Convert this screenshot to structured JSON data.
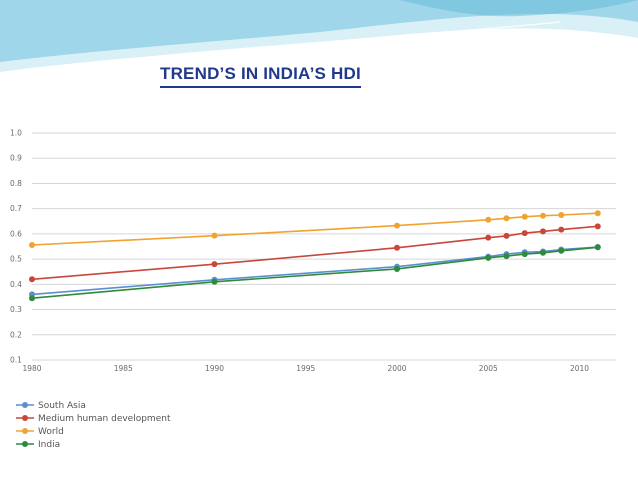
{
  "slide": {
    "title": "TREND’S  IN  INDIA’S  HDI"
  },
  "colors": {
    "title": "#1f3a8a",
    "header_wave_light": "#bfe6f2",
    "header_wave_dark": "#5fb9d6",
    "grid": "#d6d6d6"
  },
  "chart_data": {
    "type": "line",
    "title": "",
    "xlabel": "",
    "ylabel": "",
    "ylim": [
      0.1,
      1.0
    ],
    "xlim": [
      1980,
      2012
    ],
    "grid": true,
    "legend_placement": "bottom-left",
    "y_ticks": [
      "0.1",
      "0.2",
      "0.3",
      "0.4",
      "0.5",
      "0.6",
      "0.7",
      "0.8",
      "0.9",
      "1.0"
    ],
    "x_ticks": [
      "1980",
      "1985",
      "1990",
      "1995",
      "2000",
      "2005",
      "2010"
    ],
    "x": [
      1980,
      1990,
      2000,
      2005,
      2006,
      2007,
      2008,
      2009,
      2011
    ],
    "series": [
      {
        "name": "South Asia",
        "color": "#5b8fd0",
        "values": [
          0.36,
          0.418,
          0.47,
          0.51,
          0.52,
          0.527,
          0.53,
          0.538,
          0.548
        ]
      },
      {
        "name": "Medium human development",
        "color": "#c8473a",
        "values": [
          0.42,
          0.48,
          0.545,
          0.585,
          0.592,
          0.603,
          0.61,
          0.617,
          0.63
        ]
      },
      {
        "name": "World",
        "color": "#f0a32e",
        "values": [
          0.556,
          0.593,
          0.633,
          0.656,
          0.662,
          0.668,
          0.672,
          0.675,
          0.682
        ]
      },
      {
        "name": "India",
        "color": "#2e8a3c",
        "values": [
          0.345,
          0.41,
          0.461,
          0.505,
          0.512,
          0.52,
          0.525,
          0.533,
          0.547
        ]
      }
    ]
  }
}
